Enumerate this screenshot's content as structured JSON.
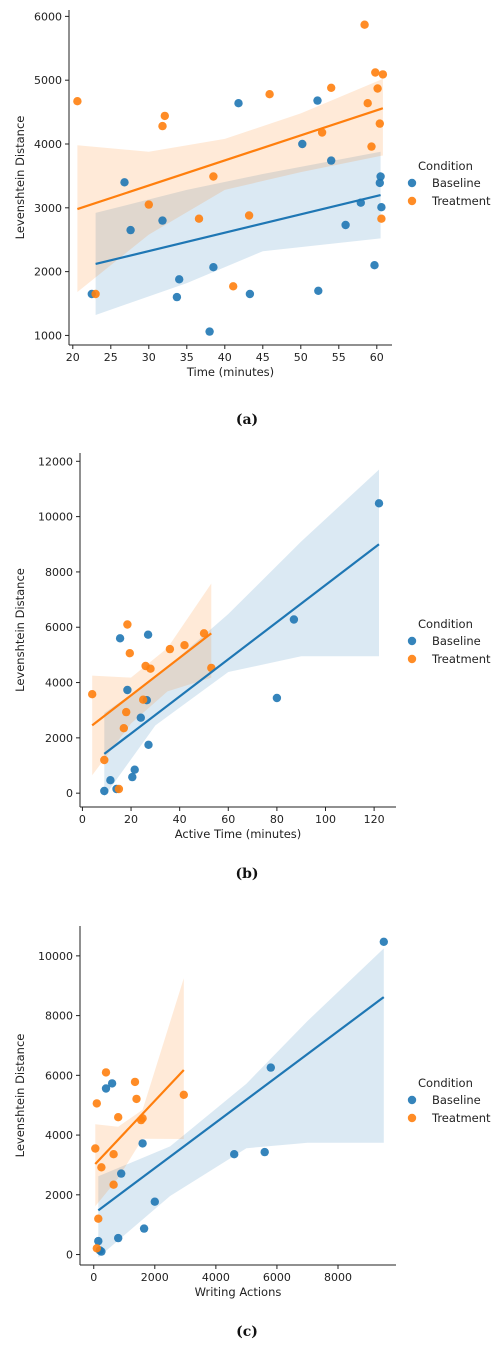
{
  "colors": {
    "baseline": "#1f77b4",
    "treatment": "#ff7f0e"
  },
  "legend": {
    "title": "Condition",
    "items": [
      "Baseline",
      "Treatment"
    ]
  },
  "chart_data": [
    {
      "type": "scatter",
      "caption": "(a)",
      "xlabel": "Time (minutes)",
      "ylabel": "Levenshtein Distance",
      "xlim": [
        19.5,
        62
      ],
      "ylim": [
        850,
        6100
      ],
      "xticks": [
        20,
        25,
        30,
        35,
        40,
        45,
        50,
        55,
        60
      ],
      "yticks": [
        1000,
        2000,
        3000,
        4000,
        5000,
        6000
      ],
      "series": [
        {
          "name": "Baseline",
          "points": [
            [
              22.5,
              1650
            ],
            [
              26.8,
              3400
            ],
            [
              27.6,
              2650
            ],
            [
              31.8,
              2800
            ],
            [
              33.7,
              1600
            ],
            [
              34.0,
              1880
            ],
            [
              38.0,
              1060
            ],
            [
              38.5,
              2070
            ],
            [
              41.8,
              4640
            ],
            [
              43.3,
              1650
            ],
            [
              50.2,
              4000
            ],
            [
              52.2,
              4680
            ],
            [
              52.3,
              1700
            ],
            [
              54.0,
              3740
            ],
            [
              55.9,
              2730
            ],
            [
              57.9,
              3080
            ],
            [
              59.7,
              2100
            ],
            [
              60.4,
              3390
            ],
            [
              60.5,
              3490
            ],
            [
              60.6,
              3010
            ]
          ],
          "fit": [
            [
              23,
              2120
            ],
            [
              60.5,
              3200
            ]
          ],
          "ci": [
            [
              23,
              2920,
              1320
            ],
            [
              35,
              3280,
              1820
            ],
            [
              45,
              3530,
              2320
            ],
            [
              60.5,
              3880,
              2520
            ]
          ]
        },
        {
          "name": "Treatment",
          "points": [
            [
              20.6,
              4670
            ],
            [
              23.0,
              1650
            ],
            [
              30.0,
              3050
            ],
            [
              31.8,
              4280
            ],
            [
              32.1,
              4440
            ],
            [
              36.6,
              2830
            ],
            [
              38.5,
              3490
            ],
            [
              41.1,
              1770
            ],
            [
              43.2,
              2880
            ],
            [
              45.9,
              4780
            ],
            [
              52.8,
              4180
            ],
            [
              54.0,
              4880
            ],
            [
              58.4,
              5870
            ],
            [
              58.8,
              4640
            ],
            [
              59.3,
              3960
            ],
            [
              59.8,
              5120
            ],
            [
              60.1,
              4870
            ],
            [
              60.4,
              4320
            ],
            [
              60.6,
              2830
            ],
            [
              60.8,
              5090
            ]
          ],
          "fit": [
            [
              20.6,
              2980
            ],
            [
              60.8,
              4560
            ]
          ],
          "ci": [
            [
              20.6,
              3980,
              1680
            ],
            [
              30,
              3880,
              2580
            ],
            [
              40,
              4080,
              3280
            ],
            [
              50,
              4480,
              3560
            ],
            [
              60.8,
              5020,
              3820
            ]
          ]
        }
      ]
    },
    {
      "type": "scatter",
      "caption": "(b)",
      "xlabel": "Active Time (minutes)",
      "ylabel": "Levenshtein Distance",
      "xlim": [
        -1,
        129
      ],
      "ylim": [
        -500,
        12300
      ],
      "xticks": [
        0,
        20,
        40,
        60,
        80,
        100,
        120
      ],
      "yticks": [
        0,
        2000,
        4000,
        6000,
        8000,
        10000,
        12000
      ],
      "series": [
        {
          "name": "Baseline",
          "points": [
            [
              9,
              80
            ],
            [
              11.5,
              470
            ],
            [
              14,
              150
            ],
            [
              15.5,
              5600
            ],
            [
              18.5,
              3730
            ],
            [
              20.5,
              580
            ],
            [
              21.5,
              850
            ],
            [
              24,
              2730
            ],
            [
              26.5,
              3360
            ],
            [
              27,
              5730
            ],
            [
              27.2,
              1750
            ],
            [
              80,
              3440
            ],
            [
              87,
              6280
            ],
            [
              122,
              10480
            ]
          ],
          "fit": [
            [
              9,
              1420
            ],
            [
              122,
              9000
            ]
          ],
          "ci": [
            [
              9,
              2900,
              -120
            ],
            [
              30,
              4180,
              2450
            ],
            [
              60,
              6480,
              4380
            ],
            [
              90,
              9100,
              4950
            ],
            [
              122,
              11700,
              4950
            ]
          ]
        },
        {
          "name": "Treatment",
          "points": [
            [
              4,
              3580
            ],
            [
              9,
              1200
            ],
            [
              15,
              150
            ],
            [
              17,
              2350
            ],
            [
              18,
              2930
            ],
            [
              18.5,
              6100
            ],
            [
              19.5,
              5060
            ],
            [
              25,
              3380
            ],
            [
              26,
              4600
            ],
            [
              28,
              4500
            ],
            [
              36,
              5210
            ],
            [
              42,
              5350
            ],
            [
              50,
              5780
            ],
            [
              53,
              4530
            ]
          ],
          "fit": [
            [
              4,
              2450
            ],
            [
              53,
              5780
            ]
          ],
          "ci": [
            [
              4,
              4250,
              650
            ],
            [
              20,
              4180,
              2520
            ],
            [
              35,
              5250,
              3680
            ],
            [
              53,
              7580,
              4180
            ]
          ]
        }
      ]
    },
    {
      "type": "scatter",
      "caption": "(c)",
      "xlabel": "Writing Actions",
      "ylabel": "Levenshtein Distance",
      "xlim": [
        -450,
        9900
      ],
      "ylim": [
        -350,
        11000
      ],
      "xticks": [
        0,
        2000,
        4000,
        6000,
        8000
      ],
      "yticks": [
        0,
        2000,
        4000,
        6000,
        8000,
        10000
      ],
      "series": [
        {
          "name": "Baseline",
          "points": [
            [
              150,
              450
            ],
            [
              200,
              140
            ],
            [
              250,
              100
            ],
            [
              400,
              5560
            ],
            [
              600,
              5730
            ],
            [
              800,
              550
            ],
            [
              900,
              2710
            ],
            [
              1600,
              3720
            ],
            [
              1650,
              870
            ],
            [
              2000,
              1770
            ],
            [
              4600,
              3360
            ],
            [
              5600,
              3430
            ],
            [
              5800,
              6260
            ],
            [
              9500,
              10470
            ]
          ],
          "fit": [
            [
              150,
              1480
            ],
            [
              9500,
              8620
            ]
          ],
          "ci": [
            [
              150,
              2620,
              -100
            ],
            [
              2500,
              3620,
              1960
            ],
            [
              5000,
              5720,
              3560
            ],
            [
              7000,
              7820,
              3740
            ],
            [
              9500,
              10250,
              3740
            ]
          ]
        },
        {
          "name": "Treatment",
          "points": [
            [
              50,
              3550
            ],
            [
              100,
              5060
            ],
            [
              100,
              210
            ],
            [
              150,
              1200
            ],
            [
              250,
              2920
            ],
            [
              400,
              6100
            ],
            [
              650,
              3360
            ],
            [
              650,
              2340
            ],
            [
              800,
              4600
            ],
            [
              1350,
              5780
            ],
            [
              1400,
              5210
            ],
            [
              1550,
              4500
            ],
            [
              1600,
              4560
            ],
            [
              2950,
              5350
            ]
          ],
          "fit": [
            [
              50,
              3030
            ],
            [
              2950,
              6180
            ]
          ],
          "ci": [
            [
              50,
              4360,
              1620
            ],
            [
              800,
              4280,
              2560
            ],
            [
              1600,
              4850,
              3880
            ],
            [
              2950,
              9250,
              3870
            ]
          ]
        }
      ]
    }
  ]
}
